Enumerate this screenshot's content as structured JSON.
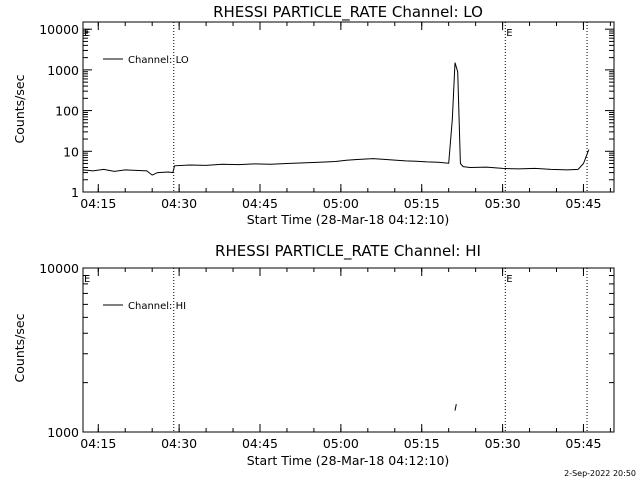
{
  "footer": {
    "date_stamp": "2-Sep-2022 20:50"
  },
  "chart_data": [
    {
      "type": "line",
      "title": "RHESSI PARTICLE_RATE Channel: LO",
      "xlabel": "Start Time (28-Mar-18 04:12:10)",
      "ylabel": "Counts/sec",
      "y_scale": "log",
      "xlim": [
        "04:12:10",
        "05:50:40"
      ],
      "ylim": [
        1,
        15000
      ],
      "x_ticks": [
        "04:15",
        "04:30",
        "04:45",
        "05:00",
        "05:15",
        "05:30",
        "05:45"
      ],
      "y_ticks": [
        "1",
        "10",
        "100",
        "1000",
        "10000"
      ],
      "legend": "top-left",
      "event_markers": [
        {
          "time": "04:29:00",
          "label": ""
        },
        {
          "time": "05:30:30",
          "label": "E"
        },
        {
          "time": "05:45:40",
          "label": ""
        }
      ],
      "start_flag": "E",
      "series": [
        {
          "name": "Channel: LO",
          "x": [
            "04:12:10",
            "04:14:00",
            "04:16:00",
            "04:18:00",
            "04:20:00",
            "04:22:00",
            "04:24:00",
            "04:25:00",
            "04:26:00",
            "04:28:00",
            "04:28:50",
            "04:29:10",
            "04:32:00",
            "04:35:00",
            "04:38:00",
            "04:41:00",
            "04:44:00",
            "04:47:00",
            "04:50:00",
            "04:53:00",
            "04:56:00",
            "04:59:00",
            "05:01:00",
            "05:03:00",
            "05:06:00",
            "05:09:00",
            "05:12:00",
            "05:14:00",
            "05:16:00",
            "05:18:00",
            "05:20:00",
            "05:20:40",
            "05:21:10",
            "05:21:40",
            "05:22:10",
            "05:22:40",
            "05:24:00",
            "05:27:00",
            "05:30:00",
            "05:33:00",
            "05:36:00",
            "05:39:00",
            "05:42:00",
            "05:44:00",
            "05:45:00",
            "05:46:00"
          ],
          "values": [
            3.5,
            3.3,
            3.6,
            3.2,
            3.5,
            3.4,
            3.3,
            2.6,
            3.0,
            3.1,
            3.0,
            4.4,
            4.6,
            4.5,
            4.8,
            4.7,
            4.9,
            4.8,
            5.0,
            5.2,
            5.4,
            5.6,
            6.0,
            6.3,
            6.6,
            6.2,
            5.8,
            5.7,
            5.5,
            5.4,
            5.1,
            60,
            1500,
            900,
            5,
            4.2,
            4.0,
            4.1,
            3.8,
            3.7,
            3.8,
            3.6,
            3.5,
            3.6,
            5.0,
            11
          ]
        }
      ]
    },
    {
      "type": "line",
      "title": "RHESSI PARTICLE_RATE Channel: HI",
      "xlabel": "Start Time (28-Mar-18 04:12:10)",
      "ylabel": "Counts/sec",
      "y_scale": "log",
      "xlim": [
        "04:12:10",
        "05:50:40"
      ],
      "ylim": [
        1000,
        10000
      ],
      "x_ticks": [
        "04:15",
        "04:30",
        "04:45",
        "05:00",
        "05:15",
        "05:30",
        "05:45"
      ],
      "y_ticks": [
        "1000",
        "10000"
      ],
      "legend": "top-left",
      "event_markers": [
        {
          "time": "04:29:00",
          "label": ""
        },
        {
          "time": "05:30:30",
          "label": "E"
        },
        {
          "time": "05:45:40",
          "label": ""
        }
      ],
      "start_flag": "E",
      "series": [
        {
          "name": "Channel: HI",
          "x": [
            "05:21:10",
            "05:21:25"
          ],
          "values": [
            1350,
            1480
          ]
        }
      ]
    }
  ]
}
